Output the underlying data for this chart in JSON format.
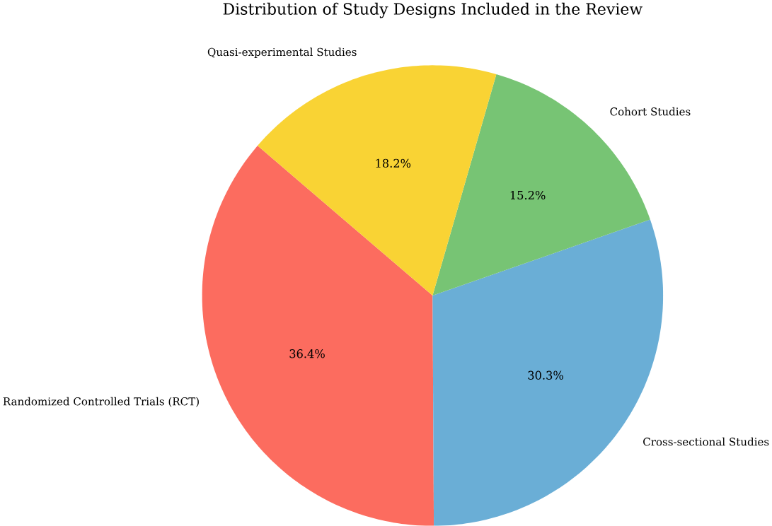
{
  "chart_data": {
    "type": "pie",
    "title": "Distribution of Study Designs Included in the Review",
    "categories": [
      "Randomized Controlled Trials (RCT)",
      "Cross-sectional Studies",
      "Cohort Studies",
      "Quasi-experimental Studies"
    ],
    "values": [
      36.4,
      30.3,
      15.2,
      18.2
    ],
    "value_labels": [
      "36.4%",
      "30.3%",
      "15.2%",
      "18.2%"
    ],
    "colors": [
      "#fc6c5f",
      "#6aaed6",
      "#77c474",
      "#f9d334"
    ]
  }
}
